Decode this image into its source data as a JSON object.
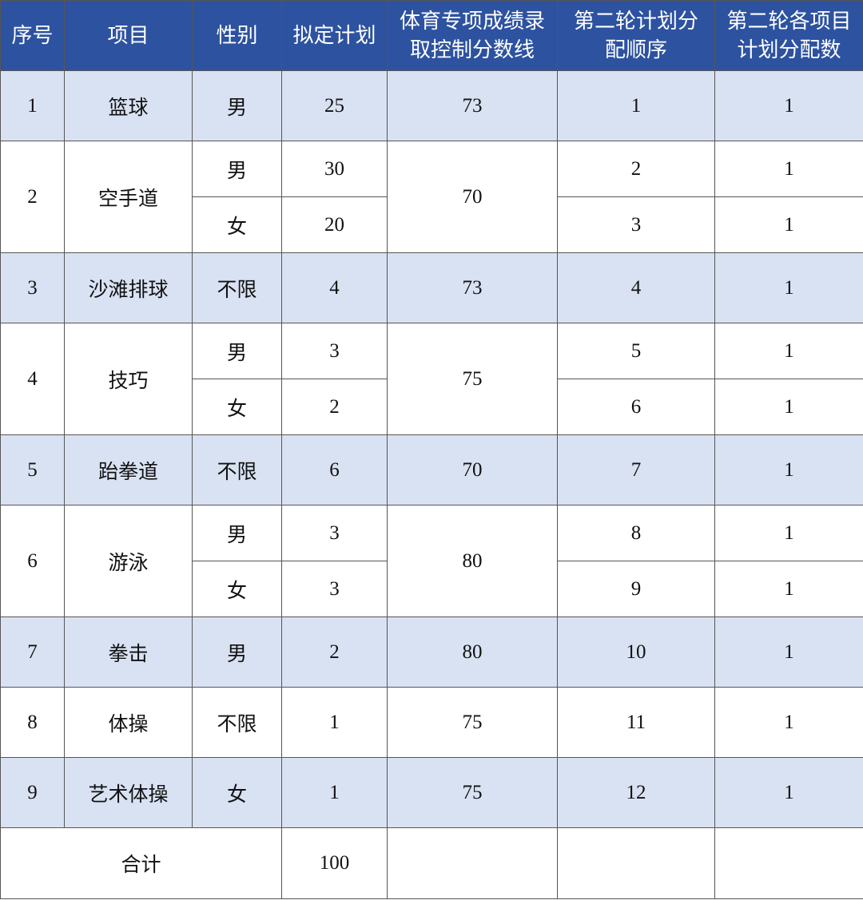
{
  "colors": {
    "header_bg": "#2D52A0",
    "shaded_row": "#D9E2F3"
  },
  "headers": [
    "序号",
    "项目",
    "性别",
    "拟定计划",
    "体育专项成绩录取控制分数线",
    "第二轮计划分配顺序",
    "第二轮各项目计划分配数"
  ],
  "rows": [
    {
      "no": "1",
      "item": "篮球",
      "score": "73",
      "shaded": true,
      "entries": [
        {
          "gender": "男",
          "plan": "25",
          "order": "1",
          "count": "1"
        }
      ]
    },
    {
      "no": "2",
      "item": "空手道",
      "score": "70",
      "shaded": false,
      "entries": [
        {
          "gender": "男",
          "plan": "30",
          "order": "2",
          "count": "1"
        },
        {
          "gender": "女",
          "plan": "20",
          "order": "3",
          "count": "1"
        }
      ]
    },
    {
      "no": "3",
      "item": "沙滩排球",
      "score": "73",
      "shaded": true,
      "entries": [
        {
          "gender": "不限",
          "plan": "4",
          "order": "4",
          "count": "1"
        }
      ]
    },
    {
      "no": "4",
      "item": "技巧",
      "score": "75",
      "shaded": false,
      "entries": [
        {
          "gender": "男",
          "plan": "3",
          "order": "5",
          "count": "1"
        },
        {
          "gender": "女",
          "plan": "2",
          "order": "6",
          "count": "1"
        }
      ]
    },
    {
      "no": "5",
      "item": "跆拳道",
      "score": "70",
      "shaded": true,
      "entries": [
        {
          "gender": "不限",
          "plan": "6",
          "order": "7",
          "count": "1"
        }
      ]
    },
    {
      "no": "6",
      "item": "游泳",
      "score": "80",
      "shaded": false,
      "entries": [
        {
          "gender": "男",
          "plan": "3",
          "order": "8",
          "count": "1"
        },
        {
          "gender": "女",
          "plan": "3",
          "order": "9",
          "count": "1"
        }
      ]
    },
    {
      "no": "7",
      "item": "拳击",
      "score": "80",
      "shaded": true,
      "entries": [
        {
          "gender": "男",
          "plan": "2",
          "order": "10",
          "count": "1"
        }
      ]
    },
    {
      "no": "8",
      "item": "体操",
      "score": "75",
      "shaded": false,
      "entries": [
        {
          "gender": "不限",
          "plan": "1",
          "order": "11",
          "count": "1"
        }
      ]
    },
    {
      "no": "9",
      "item": "艺术体操",
      "score": "75",
      "shaded": true,
      "entries": [
        {
          "gender": "女",
          "plan": "1",
          "order": "12",
          "count": "1"
        }
      ]
    }
  ],
  "total": {
    "label": "合计",
    "plan": "100"
  }
}
